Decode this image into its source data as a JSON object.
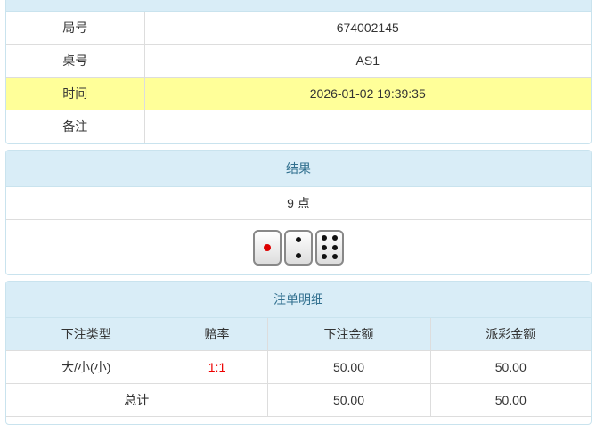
{
  "info": {
    "rows": [
      {
        "label": "局号",
        "value": "674002145"
      },
      {
        "label": "桌号",
        "value": "AS1"
      },
      {
        "label": "时间",
        "value": "2026-01-02 19:39:35"
      },
      {
        "label": "备注",
        "value": ""
      }
    ]
  },
  "result": {
    "title": "结果",
    "points": "9 点",
    "dice": [
      1,
      2,
      6
    ]
  },
  "bets": {
    "title": "注单明细",
    "headers": [
      "下注类型",
      "赔率",
      "下注金额",
      "派彩金额"
    ],
    "rows": [
      {
        "type": "大/小(小)",
        "odds": "1:1",
        "amount": "50.00",
        "payout": "50.00"
      }
    ],
    "total": {
      "label": "总计",
      "amount": "50.00",
      "payout": "50.00"
    }
  },
  "colors": {
    "header_bg": "#d9edf7",
    "highlight": "#ffff99",
    "odds": "#ee0000"
  }
}
